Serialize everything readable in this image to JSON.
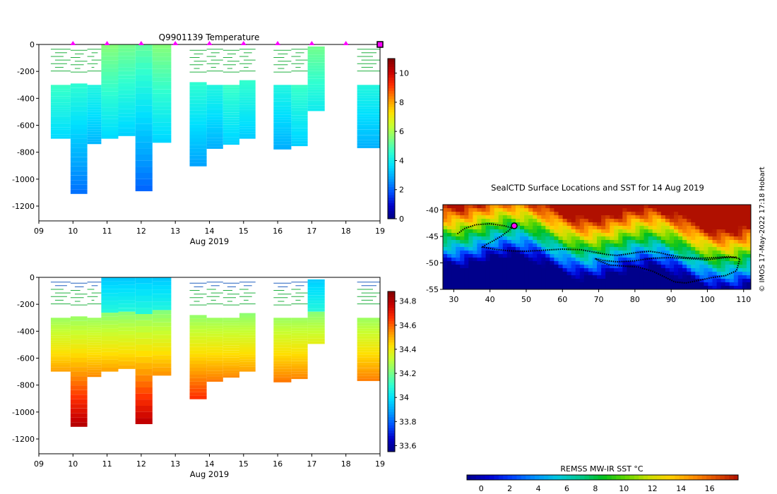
{
  "figure": {
    "temp_title": "Q9901139  Temperature",
    "map_title": "SealCTD Surface Locations and SST for 14 Aug 2019",
    "credit": "© IMOS 17-May-2022 17:18 Hobart",
    "sst_colorbar_label": "REMSS MW-IR SST °C"
  },
  "colors": {
    "jet": [
      "#000080",
      "#0000c8",
      "#0050ff",
      "#00a0ff",
      "#00e0ff",
      "#30ffd0",
      "#80ff80",
      "#c8ff30",
      "#ffe000",
      "#ff9000",
      "#ff3000",
      "#c80000",
      "#800000"
    ],
    "profile_temp": [
      "#00b0ff",
      "#00c0f0",
      "#00d0e0",
      "#00d8b8",
      "#00d070",
      "#00c840"
    ],
    "marker": "#ff00ff",
    "track": "#000000",
    "sst_palette": [
      "#00008b",
      "#0000d0",
      "#0040ff",
      "#0090ff",
      "#00c8e0",
      "#00c890",
      "#00c020",
      "#60d800",
      "#c8e000",
      "#ffd000",
      "#ff9000",
      "#e05000",
      "#b01000"
    ]
  },
  "chart_data": [
    {
      "name": "temperature-section",
      "type": "heatmap",
      "title": "Q9901139  Temperature",
      "xlabel": "Aug 2019",
      "ylabel": "",
      "x_ticks": [
        "09",
        "10",
        "11",
        "12",
        "13",
        "14",
        "15",
        "16",
        "17",
        "18",
        "19"
      ],
      "y_ticks": [
        0,
        -200,
        -400,
        -600,
        -800,
        -1000,
        -1200
      ],
      "ylim": [
        -1310,
        0
      ],
      "xlim": [
        9,
        19
      ],
      "colorbar": {
        "ticks": [
          0,
          2,
          4,
          6,
          8,
          10
        ],
        "range": [
          0,
          11
        ]
      },
      "profile_day_bounds": [
        [
          9.35,
          9.93
        ],
        [
          9.93,
          10.42
        ],
        [
          10.42,
          10.83
        ],
        [
          10.83,
          11.33
        ],
        [
          11.33,
          11.83
        ],
        [
          11.83,
          12.33
        ],
        [
          12.33,
          12.88
        ],
        [
          13.42,
          13.92
        ],
        [
          13.92,
          14.4
        ],
        [
          14.4,
          14.88
        ],
        [
          14.88,
          15.35
        ],
        [
          15.88,
          16.4
        ],
        [
          16.4,
          16.88
        ],
        [
          16.88,
          17.38
        ],
        [
          18.33,
          19.0
        ]
      ],
      "profile_depth_ranges": [
        [
          -300,
          -700
        ],
        [
          -290,
          -1110
        ],
        [
          -300,
          -740
        ],
        [
          0,
          -700
        ],
        [
          0,
          -680
        ],
        [
          0,
          -1090
        ],
        [
          0,
          -730
        ],
        [
          -280,
          -905
        ],
        [
          -300,
          -775
        ],
        [
          -300,
          -745
        ],
        [
          -265,
          -700
        ],
        [
          -300,
          -780
        ],
        [
          -300,
          -755
        ],
        [
          -15,
          -495
        ],
        [
          -300,
          -770
        ]
      ],
      "surface_markers_day": [
        10,
        11,
        12,
        13,
        14,
        15,
        16,
        17,
        18,
        19
      ]
    },
    {
      "name": "salinity-section",
      "type": "heatmap",
      "title": "",
      "xlabel": "Aug 2019",
      "x_ticks": [
        "09",
        "10",
        "11",
        "12",
        "13",
        "14",
        "15",
        "16",
        "17",
        "18",
        "19"
      ],
      "y_ticks": [
        0,
        -200,
        -400,
        -600,
        -800,
        -1000,
        -1200
      ],
      "ylim": [
        -1310,
        0
      ],
      "xlim": [
        9,
        19
      ],
      "colorbar": {
        "ticks": [
          33.6,
          33.8,
          34,
          34.2,
          34.4,
          34.6,
          34.8
        ],
        "range": [
          33.55,
          34.88
        ]
      },
      "profile_day_bounds": [
        [
          9.35,
          9.93
        ],
        [
          9.93,
          10.42
        ],
        [
          10.42,
          10.83
        ],
        [
          10.83,
          11.33
        ],
        [
          11.33,
          11.83
        ],
        [
          11.83,
          12.33
        ],
        [
          12.33,
          12.88
        ],
        [
          13.42,
          13.92
        ],
        [
          13.92,
          14.4
        ],
        [
          14.4,
          14.88
        ],
        [
          14.88,
          15.35
        ],
        [
          15.88,
          16.4
        ],
        [
          16.4,
          16.88
        ],
        [
          16.88,
          17.38
        ],
        [
          18.33,
          19.0
        ]
      ],
      "profile_depth_ranges": [
        [
          -300,
          -700
        ],
        [
          -290,
          -1110
        ],
        [
          -300,
          -740
        ],
        [
          0,
          -700
        ],
        [
          0,
          -680
        ],
        [
          0,
          -1090
        ],
        [
          0,
          -730
        ],
        [
          -280,
          -905
        ],
        [
          -300,
          -775
        ],
        [
          -300,
          -745
        ],
        [
          -265,
          -700
        ],
        [
          -300,
          -780
        ],
        [
          -300,
          -755
        ],
        [
          -15,
          -495
        ],
        [
          -300,
          -770
        ]
      ]
    },
    {
      "name": "sst-map",
      "type": "heatmap",
      "title": "SealCTD Surface Locations and SST for 14 Aug 2019",
      "x_ticks": [
        30,
        40,
        50,
        60,
        70,
        80,
        90,
        100,
        110
      ],
      "y_ticks": [
        -40,
        -45,
        -50,
        -55
      ],
      "xlim": [
        27,
        112
      ],
      "ylim": [
        -55,
        -39
      ],
      "colorbar": {
        "label": "REMSS MW-IR SST °C",
        "ticks": [
          0,
          2,
          4,
          6,
          8,
          10,
          12,
          14,
          16
        ],
        "range": [
          -1,
          18
        ]
      },
      "track_lon": [
        31,
        33,
        36,
        40,
        44,
        46,
        45,
        43,
        41,
        39,
        38,
        41,
        45,
        50,
        55,
        60,
        65,
        69,
        72,
        75,
        78,
        81,
        84,
        87,
        90,
        94,
        98,
        102,
        106,
        109,
        108,
        105,
        101,
        97,
        94,
        91,
        88,
        85,
        81,
        77,
        73,
        70,
        69,
        71,
        75,
        80,
        85,
        90,
        95,
        100,
        105,
        108
      ],
      "track_lat": [
        -44.5,
        -43.5,
        -42.8,
        -42.6,
        -43.0,
        -43.4,
        -44.0,
        -45.0,
        -45.8,
        -46.5,
        -47.0,
        -47.4,
        -47.7,
        -47.8,
        -47.6,
        -47.4,
        -47.5,
        -48.0,
        -48.4,
        -48.6,
        -48.3,
        -48.0,
        -47.8,
        -48.1,
        -48.6,
        -49.0,
        -49.1,
        -49.0,
        -48.8,
        -49.2,
        -51.5,
        -52.4,
        -52.8,
        -53.4,
        -53.8,
        -53.6,
        -52.6,
        -51.6,
        -50.8,
        -50.6,
        -50.4,
        -49.6,
        -49.2,
        -49.5,
        -49.8,
        -49.6,
        -49.1,
        -49.0,
        -49.2,
        -49.4,
        -49.0,
        -48.9
      ],
      "current_location": [
        46.7,
        -43.0
      ]
    }
  ]
}
